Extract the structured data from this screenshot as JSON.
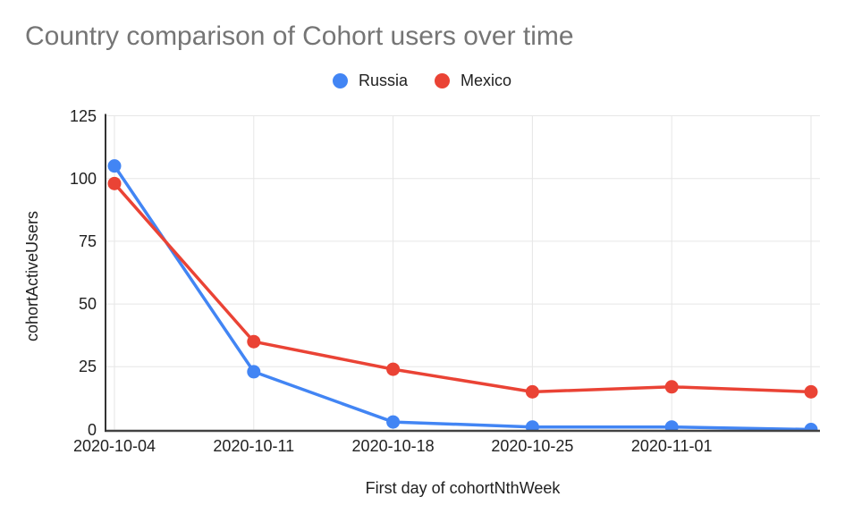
{
  "chart_data": {
    "type": "line",
    "title": "Country comparison of Cohort users over time",
    "title_color": "#757575",
    "xlabel": "First day of cohortNthWeek",
    "ylabel": "cohortActiveUsers",
    "categories": [
      "2020-10-04",
      "2020-10-11",
      "2020-10-18",
      "2020-10-25",
      "2020-11-01",
      ""
    ],
    "series": [
      {
        "name": "Russia",
        "color": "#4285F4",
        "values": [
          105,
          23,
          3,
          1,
          1,
          0
        ]
      },
      {
        "name": "Mexico",
        "color": "#EA4335",
        "values": [
          98,
          35,
          24,
          15,
          17,
          15
        ]
      }
    ],
    "y_ticks": [
      0,
      25,
      50,
      75,
      100,
      125
    ],
    "ylim": [
      0,
      125
    ],
    "grid": true,
    "grid_color": "#e6e6e6",
    "axis_color": "#424242",
    "legend_position": "top-center",
    "marker": "circle"
  }
}
